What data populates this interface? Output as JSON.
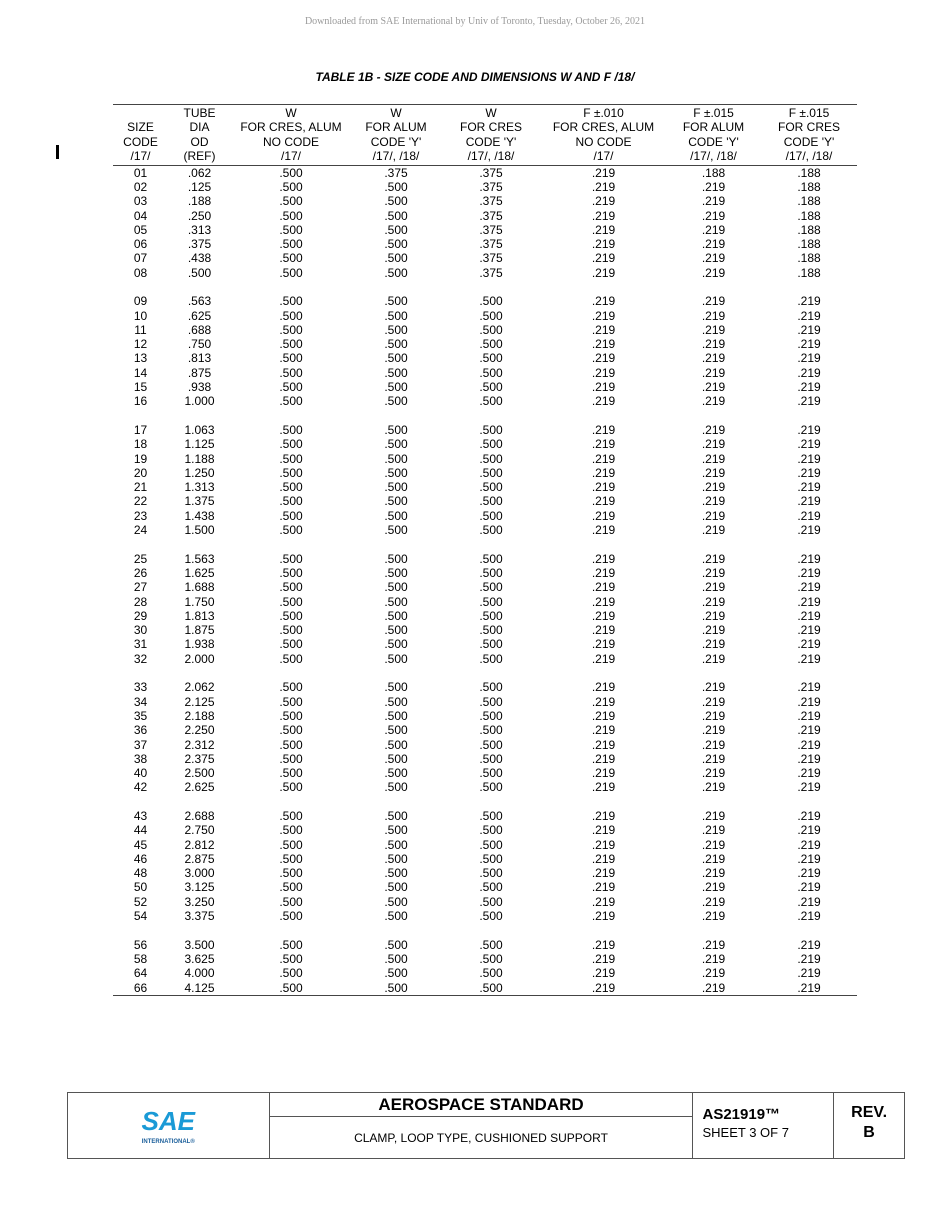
{
  "watermark": "Downloaded from SAE International by Univ of Toronto, Tuesday, October 26, 2021",
  "table_title": "TABLE 1B - SIZE CODE AND DIMENSIONS W AND F /18/",
  "change_bar": "I",
  "columns": [
    [
      "",
      "SIZE",
      "CODE",
      "/17/"
    ],
    [
      "TUBE",
      "DIA",
      "OD",
      "(REF)"
    ],
    [
      "W",
      "FOR CRES, ALUM",
      "NO CODE",
      "/17/"
    ],
    [
      "W",
      "FOR ALUM",
      "CODE 'Y'",
      "/17/, /18/"
    ],
    [
      "W",
      "FOR CRES",
      "CODE 'Y'",
      "/17/, /18/"
    ],
    [
      "F ±.010",
      "FOR CRES, ALUM",
      "NO CODE",
      "/17/"
    ],
    [
      "F ±.015",
      "FOR ALUM",
      "CODE 'Y'",
      "/17/, /18/"
    ],
    [
      "F ±.015",
      "FOR CRES",
      "CODE 'Y'",
      "/17/, /18/"
    ]
  ],
  "groups": [
    [
      [
        "01",
        ".062",
        ".500",
        ".375",
        ".375",
        ".219",
        ".188",
        ".188"
      ],
      [
        "02",
        ".125",
        ".500",
        ".500",
        ".375",
        ".219",
        ".219",
        ".188"
      ],
      [
        "03",
        ".188",
        ".500",
        ".500",
        ".375",
        ".219",
        ".219",
        ".188"
      ],
      [
        "04",
        ".250",
        ".500",
        ".500",
        ".375",
        ".219",
        ".219",
        ".188"
      ],
      [
        "05",
        ".313",
        ".500",
        ".500",
        ".375",
        ".219",
        ".219",
        ".188"
      ],
      [
        "06",
        ".375",
        ".500",
        ".500",
        ".375",
        ".219",
        ".219",
        ".188"
      ],
      [
        "07",
        ".438",
        ".500",
        ".500",
        ".375",
        ".219",
        ".219",
        ".188"
      ],
      [
        "08",
        ".500",
        ".500",
        ".500",
        ".375",
        ".219",
        ".219",
        ".188"
      ]
    ],
    [
      [
        "09",
        ".563",
        ".500",
        ".500",
        ".500",
        ".219",
        ".219",
        ".219"
      ],
      [
        "10",
        ".625",
        ".500",
        ".500",
        ".500",
        ".219",
        ".219",
        ".219"
      ],
      [
        "11",
        ".688",
        ".500",
        ".500",
        ".500",
        ".219",
        ".219",
        ".219"
      ],
      [
        "12",
        ".750",
        ".500",
        ".500",
        ".500",
        ".219",
        ".219",
        ".219"
      ],
      [
        "13",
        ".813",
        ".500",
        ".500",
        ".500",
        ".219",
        ".219",
        ".219"
      ],
      [
        "14",
        ".875",
        ".500",
        ".500",
        ".500",
        ".219",
        ".219",
        ".219"
      ],
      [
        "15",
        ".938",
        ".500",
        ".500",
        ".500",
        ".219",
        ".219",
        ".219"
      ],
      [
        "16",
        "1.000",
        ".500",
        ".500",
        ".500",
        ".219",
        ".219",
        ".219"
      ]
    ],
    [
      [
        "17",
        "1.063",
        ".500",
        ".500",
        ".500",
        ".219",
        ".219",
        ".219"
      ],
      [
        "18",
        "1.125",
        ".500",
        ".500",
        ".500",
        ".219",
        ".219",
        ".219"
      ],
      [
        "19",
        "1.188",
        ".500",
        ".500",
        ".500",
        ".219",
        ".219",
        ".219"
      ],
      [
        "20",
        "1.250",
        ".500",
        ".500",
        ".500",
        ".219",
        ".219",
        ".219"
      ],
      [
        "21",
        "1.313",
        ".500",
        ".500",
        ".500",
        ".219",
        ".219",
        ".219"
      ],
      [
        "22",
        "1.375",
        ".500",
        ".500",
        ".500",
        ".219",
        ".219",
        ".219"
      ],
      [
        "23",
        "1.438",
        ".500",
        ".500",
        ".500",
        ".219",
        ".219",
        ".219"
      ],
      [
        "24",
        "1.500",
        ".500",
        ".500",
        ".500",
        ".219",
        ".219",
        ".219"
      ]
    ],
    [
      [
        "25",
        "1.563",
        ".500",
        ".500",
        ".500",
        ".219",
        ".219",
        ".219"
      ],
      [
        "26",
        "1.625",
        ".500",
        ".500",
        ".500",
        ".219",
        ".219",
        ".219"
      ],
      [
        "27",
        "1.688",
        ".500",
        ".500",
        ".500",
        ".219",
        ".219",
        ".219"
      ],
      [
        "28",
        "1.750",
        ".500",
        ".500",
        ".500",
        ".219",
        ".219",
        ".219"
      ],
      [
        "29",
        "1.813",
        ".500",
        ".500",
        ".500",
        ".219",
        ".219",
        ".219"
      ],
      [
        "30",
        "1.875",
        ".500",
        ".500",
        ".500",
        ".219",
        ".219",
        ".219"
      ],
      [
        "31",
        "1.938",
        ".500",
        ".500",
        ".500",
        ".219",
        ".219",
        ".219"
      ],
      [
        "32",
        "2.000",
        ".500",
        ".500",
        ".500",
        ".219",
        ".219",
        ".219"
      ]
    ],
    [
      [
        "33",
        "2.062",
        ".500",
        ".500",
        ".500",
        ".219",
        ".219",
        ".219"
      ],
      [
        "34",
        "2.125",
        ".500",
        ".500",
        ".500",
        ".219",
        ".219",
        ".219"
      ],
      [
        "35",
        "2.188",
        ".500",
        ".500",
        ".500",
        ".219",
        ".219",
        ".219"
      ],
      [
        "36",
        "2.250",
        ".500",
        ".500",
        ".500",
        ".219",
        ".219",
        ".219"
      ],
      [
        "37",
        "2.312",
        ".500",
        ".500",
        ".500",
        ".219",
        ".219",
        ".219"
      ],
      [
        "38",
        "2.375",
        ".500",
        ".500",
        ".500",
        ".219",
        ".219",
        ".219"
      ],
      [
        "40",
        "2.500",
        ".500",
        ".500",
        ".500",
        ".219",
        ".219",
        ".219"
      ],
      [
        "42",
        "2.625",
        ".500",
        ".500",
        ".500",
        ".219",
        ".219",
        ".219"
      ]
    ],
    [
      [
        "43",
        "2.688",
        ".500",
        ".500",
        ".500",
        ".219",
        ".219",
        ".219"
      ],
      [
        "44",
        "2.750",
        ".500",
        ".500",
        ".500",
        ".219",
        ".219",
        ".219"
      ],
      [
        "45",
        "2.812",
        ".500",
        ".500",
        ".500",
        ".219",
        ".219",
        ".219"
      ],
      [
        "46",
        "2.875",
        ".500",
        ".500",
        ".500",
        ".219",
        ".219",
        ".219"
      ],
      [
        "48",
        "3.000",
        ".500",
        ".500",
        ".500",
        ".219",
        ".219",
        ".219"
      ],
      [
        "50",
        "3.125",
        ".500",
        ".500",
        ".500",
        ".219",
        ".219",
        ".219"
      ],
      [
        "52",
        "3.250",
        ".500",
        ".500",
        ".500",
        ".219",
        ".219",
        ".219"
      ],
      [
        "54",
        "3.375",
        ".500",
        ".500",
        ".500",
        ".219",
        ".219",
        ".219"
      ]
    ],
    [
      [
        "56",
        "3.500",
        ".500",
        ".500",
        ".500",
        ".219",
        ".219",
        ".219"
      ],
      [
        "58",
        "3.625",
        ".500",
        ".500",
        ".500",
        ".219",
        ".219",
        ".219"
      ],
      [
        "64",
        "4.000",
        ".500",
        ".500",
        ".500",
        ".219",
        ".219",
        ".219"
      ],
      [
        "66",
        "4.125",
        ".500",
        ".500",
        ".500",
        ".219",
        ".219",
        ".219"
      ]
    ]
  ],
  "footer": {
    "logo_text": "SAE",
    "logo_sub": "INTERNATIONAL®",
    "category": "AEROSPACE STANDARD",
    "doc_title": "CLAMP, LOOP TYPE, CUSHIONED SUPPORT",
    "doc_number": "AS21919™",
    "sheet": "SHEET 3 OF 7",
    "rev_label": "REV.",
    "rev": "B",
    "logo_color": "#1a9ad6"
  }
}
